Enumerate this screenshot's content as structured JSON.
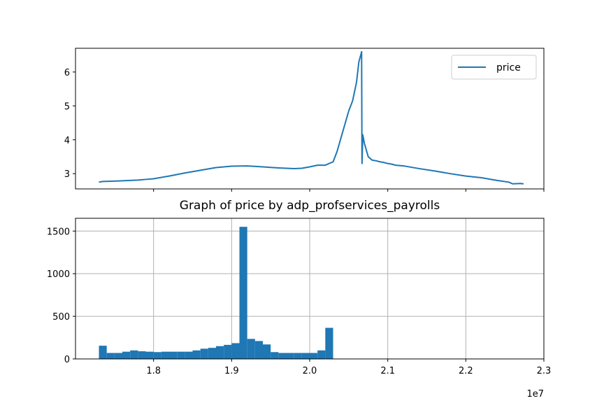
{
  "chart_data": [
    {
      "type": "line",
      "title": "",
      "xlabel": "",
      "ylabel": "",
      "xlim": [
        17000000,
        23000000
      ],
      "ylim": [
        2.55,
        6.7
      ],
      "y_ticks": [
        3,
        4,
        5,
        6
      ],
      "x_tick_labels_shown": false,
      "grid": false,
      "legend_placement": "top-right",
      "series": [
        {
          "name": "price",
          "color": "#1f77b4",
          "x": [
            17300000,
            17350000,
            17500000,
            17700000,
            17800000,
            17900000,
            18000000,
            18200000,
            18400000,
            18600000,
            18800000,
            19000000,
            19200000,
            19400000,
            19600000,
            19800000,
            19900000,
            20000000,
            20100000,
            20200000,
            20300000,
            20350000,
            20400000,
            20450000,
            20500000,
            20550000,
            20600000,
            20630000,
            20660000,
            20665000,
            20670000,
            20680000,
            20700000,
            20750000,
            20800000,
            20850000,
            20900000,
            20950000,
            21000000,
            21050000,
            21100000,
            21200000,
            21400000,
            21600000,
            21800000,
            22000000,
            22200000,
            22400000,
            22550000,
            22600000,
            22700000,
            22740000
          ],
          "values": [
            2.75,
            2.77,
            2.78,
            2.8,
            2.81,
            2.83,
            2.85,
            2.93,
            3.02,
            3.1,
            3.18,
            3.22,
            3.23,
            3.2,
            3.17,
            3.15,
            3.16,
            3.2,
            3.25,
            3.25,
            3.35,
            3.65,
            4.05,
            4.45,
            4.85,
            5.15,
            5.7,
            6.3,
            6.55,
            6.6,
            3.3,
            4.15,
            3.9,
            3.5,
            3.4,
            3.38,
            3.35,
            3.33,
            3.3,
            3.28,
            3.25,
            3.23,
            3.15,
            3.08,
            3.0,
            2.93,
            2.88,
            2.8,
            2.75,
            2.7,
            2.71,
            2.7
          ]
        }
      ]
    },
    {
      "type": "bar",
      "title": "Graph of price by adp_profservices_payrolls",
      "xlabel": "",
      "ylabel": "",
      "x_offset_label": "1e7",
      "xlim": [
        17000000,
        23000000
      ],
      "x_ticks": [
        1.8,
        1.9,
        2.0,
        2.1,
        2.2,
        2.3
      ],
      "x_tick_labels": [
        "1.8",
        "1.9",
        "2.0",
        "2.1",
        "2.2",
        "2.3"
      ],
      "ylim": [
        0,
        1650
      ],
      "y_ticks": [
        0,
        500,
        1000,
        1500
      ],
      "grid": true,
      "bar_color": "#1f77b4",
      "bin_start": 17300000,
      "bin_width": 100000,
      "values": [
        155,
        70,
        70,
        85,
        100,
        90,
        85,
        80,
        85,
        85,
        85,
        85,
        100,
        120,
        130,
        150,
        165,
        185,
        1550,
        235,
        210,
        170,
        80,
        70,
        70,
        70,
        70,
        70,
        100,
        365
      ]
    }
  ]
}
